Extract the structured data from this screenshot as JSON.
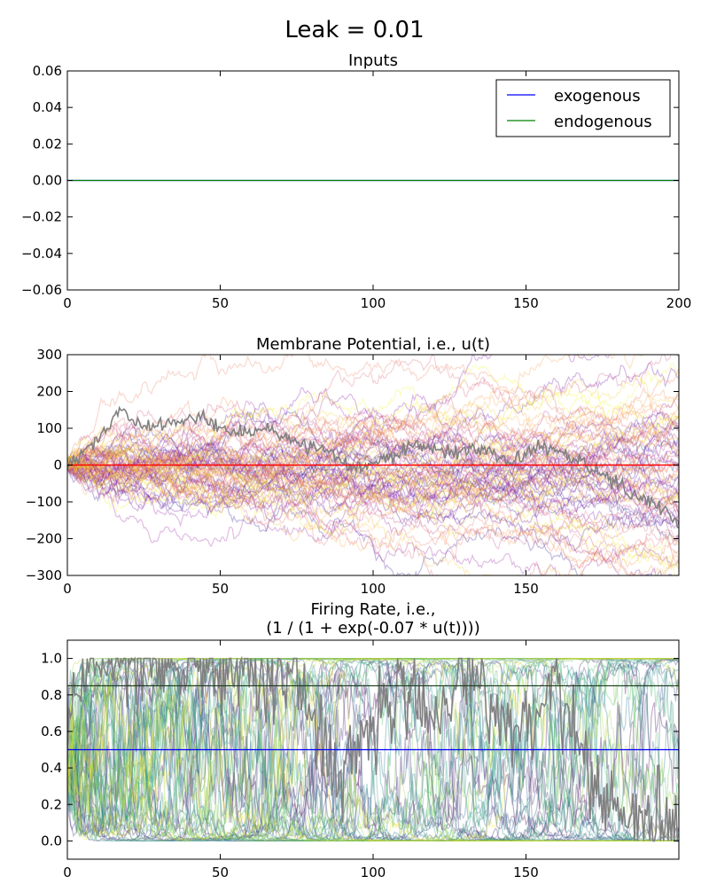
{
  "suptitle": "Leak = 0.01",
  "chart_data": [
    {
      "type": "line",
      "title": "Inputs",
      "xlim": [
        0,
        200
      ],
      "ylim": [
        -0.06,
        0.06
      ],
      "xticks": [
        0,
        50,
        100,
        150,
        200
      ],
      "yticks": [
        -0.06,
        -0.04,
        -0.02,
        0.0,
        0.02,
        0.04,
        0.06
      ],
      "xtick_labels": [
        "0",
        "50",
        "100",
        "150",
        "200"
      ],
      "ytick_labels": [
        "−0.06",
        "−0.04",
        "−0.02",
        "0.00",
        "0.02",
        "0.04",
        "0.06"
      ],
      "legend": {
        "placement": "top-right",
        "entries": [
          "exogenous",
          "endogenous"
        ]
      },
      "series": [
        {
          "name": "exogenous",
          "color": "#0000ff",
          "x": [
            0,
            200
          ],
          "y": [
            0.0,
            0.0
          ]
        },
        {
          "name": "endogenous",
          "color": "#008000",
          "x": [
            0,
            200
          ],
          "y": [
            0.0,
            0.0
          ]
        }
      ]
    },
    {
      "type": "line",
      "title": "Membrane Potential, i.e., u(t)",
      "xlim": [
        0,
        200
      ],
      "ylim": [
        -300,
        300
      ],
      "xticks": [
        0,
        50,
        100,
        150
      ],
      "yticks": [
        -300,
        -200,
        -100,
        0,
        100,
        200,
        300
      ],
      "xtick_labels": [
        "0",
        "50",
        "100",
        "150"
      ],
      "ytick_labels": [
        "−300",
        "−200",
        "−100",
        "0",
        "100",
        "200",
        "300"
      ],
      "ensemble": {
        "count": 80,
        "colormap": "plasma",
        "behavior": "random walks spreading from 0, mostly within ±250"
      },
      "highlight_trace": {
        "color": "#808080",
        "x": [
          0,
          10,
          17,
          25,
          35,
          45,
          55,
          65,
          75,
          85,
          95,
          105,
          115,
          125,
          135,
          145,
          155,
          165,
          175,
          185,
          195,
          200
        ],
        "y": [
          0,
          70,
          150,
          100,
          115,
          130,
          80,
          100,
          60,
          40,
          -10,
          20,
          60,
          30,
          50,
          10,
          60,
          20,
          -20,
          -80,
          -120,
          -170
        ]
      },
      "reference_line": {
        "color": "#ff0000",
        "y": 0
      }
    },
    {
      "type": "line",
      "title": "Firing Rate, i.e.,\n(1 / (1 + exp(-0.07 * u(t))))",
      "xlim": [
        0,
        200
      ],
      "ylim": [
        -0.1,
        1.1
      ],
      "xticks": [
        0,
        50,
        100,
        150
      ],
      "yticks": [
        0.0,
        0.2,
        0.4,
        0.6,
        0.8,
        1.0
      ],
      "xtick_labels": [
        "0",
        "50",
        "100",
        "150"
      ],
      "ytick_labels": [
        "0.0",
        "0.2",
        "0.4",
        "0.6",
        "0.8",
        "1.0"
      ],
      "ensemble": {
        "count": 60,
        "colormap": "viridis",
        "behavior": "saturating sigmoid of membrane potential, switching between 0 and 1"
      },
      "highlight_trace": {
        "color": "#808080",
        "x": [
          0,
          2,
          5,
          15,
          25,
          35,
          45,
          55,
          65,
          75,
          80,
          90,
          100,
          110,
          120,
          130,
          140,
          150,
          160,
          170,
          180,
          190,
          200
        ],
        "y": [
          0.5,
          0.85,
          0.95,
          0.99,
          0.97,
          0.96,
          0.98,
          0.95,
          0.9,
          0.88,
          0.6,
          0.4,
          0.6,
          0.85,
          0.6,
          0.95,
          0.7,
          0.55,
          0.9,
          0.35,
          0.2,
          0.05,
          0.0
        ]
      },
      "reference_lines": [
        {
          "color": "#0000ff",
          "y": 0.5
        },
        {
          "color": "#1a3a1a",
          "y": 0.85
        }
      ]
    }
  ]
}
